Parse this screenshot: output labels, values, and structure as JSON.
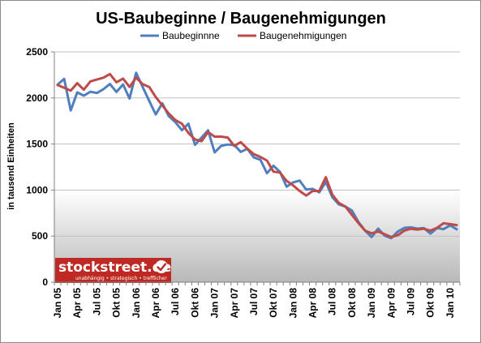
{
  "colors": {
    "baubeginne": "#4f7fbf",
    "baugenehmigungen": "#be4b48",
    "watermark_bg": "#be2a23",
    "grid": "#bfbfbf"
  },
  "watermark": {
    "brand": "stockstreet.de",
    "tagline": "unabhängig • strategisch • trefflicher"
  },
  "chart_data": {
    "type": "line",
    "title": "US-Baubeginne / Baugenehmigungen",
    "ylabel": "in tausend Einheiten",
    "xlabel": "",
    "ylim": [
      0,
      2500
    ],
    "yticks": [
      0,
      500,
      1000,
      1500,
      2000,
      2500
    ],
    "grid": "horizontal",
    "legend": "top",
    "x_tick_labels": [
      "Jan 05",
      "Apr 05",
      "Jul 05",
      "Okt 05",
      "Jan 06",
      "Apr 06",
      "Jul 06",
      "Okt 06",
      "Jan 07",
      "Apr 07",
      "Jul 07",
      "Okt 07",
      "Jan 08",
      "Apr 08",
      "Jul 08",
      "Okt 08",
      "Jan 09",
      "Apr 09",
      "Jul 09",
      "Okt 09",
      "Jan 10"
    ],
    "x_start": "2005-01",
    "x_end": "2010-03",
    "series": [
      {
        "name": "Baubeginnne",
        "color": "#4f7fbf",
        "values": [
          2144,
          2207,
          1864,
          2061,
          2025,
          2068,
          2054,
          2095,
          2151,
          2065,
          2147,
          1994,
          2273,
          2119,
          1969,
          1821,
          1942,
          1802,
          1737,
          1650,
          1720,
          1491,
          1570,
          1649,
          1409,
          1480,
          1495,
          1490,
          1415,
          1448,
          1354,
          1330,
          1183,
          1264,
          1197,
          1037,
          1084,
          1103,
          1005,
          1013,
          975,
          1087,
          923,
          844,
          820,
          777,
          652,
          560,
          490,
          582,
          505,
          478,
          549,
          590,
          595,
          581,
          587,
          527,
          588,
          576,
          617,
          575
        ]
      },
      {
        "name": "Baugenehmigungen",
        "color": "#be4b48",
        "values": [
          2140,
          2110,
          2080,
          2160,
          2090,
          2180,
          2200,
          2220,
          2260,
          2170,
          2210,
          2120,
          2220,
          2150,
          2120,
          2010,
          1920,
          1830,
          1760,
          1720,
          1620,
          1550,
          1530,
          1630,
          1580,
          1580,
          1570,
          1480,
          1520,
          1450,
          1390,
          1360,
          1320,
          1200,
          1190,
          1100,
          1050,
          990,
          940,
          990,
          990,
          1140,
          950,
          860,
          820,
          730,
          640,
          560,
          530,
          550,
          520,
          490,
          510,
          560,
          580,
          570,
          580,
          560,
          590,
          640,
          630,
          620
        ]
      }
    ]
  }
}
